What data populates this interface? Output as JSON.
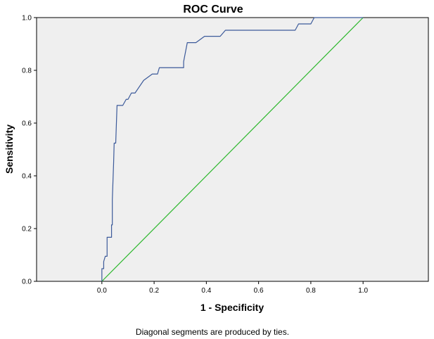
{
  "chart_data": {
    "type": "line",
    "title": "ROC Curve",
    "xlabel": "1 - Specificity",
    "ylabel": "Sensitivity",
    "xlim": [
      -0.25,
      1.25
    ],
    "ylim": [
      0,
      1
    ],
    "x_ticks": [
      "0.0",
      "0.2",
      "0.4",
      "0.6",
      "0.8",
      "1.0"
    ],
    "y_ticks": [
      "0.0",
      "0.2",
      "0.4",
      "0.6",
      "0.8",
      "1.0"
    ],
    "grid": false,
    "legend": false,
    "series": [
      {
        "color": "#3c5a9a",
        "points": [
          [
            0.0,
            0.0
          ],
          [
            0.0,
            0.048
          ],
          [
            0.007,
            0.048
          ],
          [
            0.007,
            0.075
          ],
          [
            0.013,
            0.095
          ],
          [
            0.02,
            0.095
          ],
          [
            0.02,
            0.167
          ],
          [
            0.037,
            0.167
          ],
          [
            0.037,
            0.214
          ],
          [
            0.04,
            0.214
          ],
          [
            0.04,
            0.31
          ],
          [
            0.045,
            0.45
          ],
          [
            0.047,
            0.524
          ],
          [
            0.053,
            0.524
          ],
          [
            0.058,
            0.667
          ],
          [
            0.08,
            0.667
          ],
          [
            0.093,
            0.69
          ],
          [
            0.1,
            0.69
          ],
          [
            0.113,
            0.714
          ],
          [
            0.127,
            0.714
          ],
          [
            0.16,
            0.762
          ],
          [
            0.193,
            0.786
          ],
          [
            0.213,
            0.786
          ],
          [
            0.22,
            0.81
          ],
          [
            0.313,
            0.81
          ],
          [
            0.313,
            0.833
          ],
          [
            0.327,
            0.905
          ],
          [
            0.36,
            0.905
          ],
          [
            0.393,
            0.929
          ],
          [
            0.453,
            0.929
          ],
          [
            0.473,
            0.952
          ],
          [
            0.74,
            0.952
          ],
          [
            0.753,
            0.976
          ],
          [
            0.8,
            0.976
          ],
          [
            0.813,
            1.0
          ],
          [
            1.0,
            1.0
          ]
        ]
      },
      {
        "color": "#2eb82e",
        "points": [
          [
            0,
            0
          ],
          [
            1,
            1
          ]
        ]
      }
    ],
    "plot_background": "#efefef",
    "footnote": "Diagonal segments are produced by ties."
  }
}
